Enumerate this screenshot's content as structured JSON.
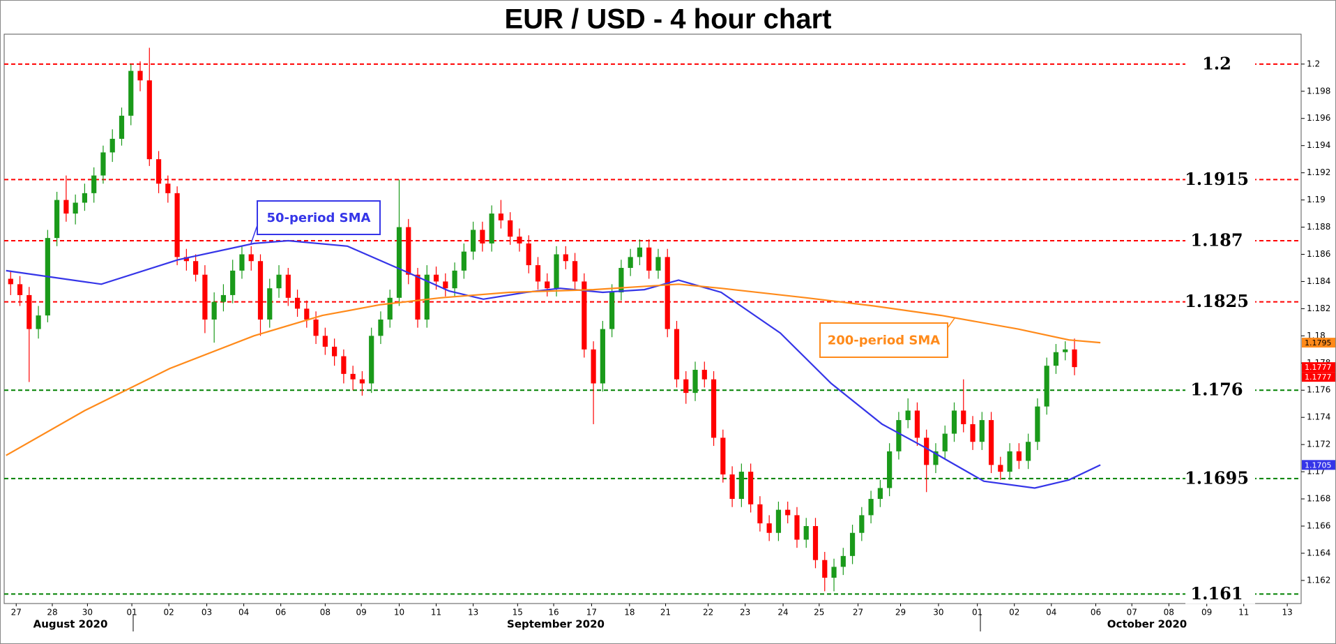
{
  "chart_data": {
    "type": "candlestick",
    "title": "EUR / USD - 4 hour chart",
    "xlim": [
      -0.7,
      139.5
    ],
    "ylim": [
      1.1603,
      1.2022
    ],
    "yticks": [
      1.162,
      1.164,
      1.166,
      1.168,
      1.17,
      1.172,
      1.174,
      1.176,
      1.178,
      1.18,
      1.182,
      1.184,
      1.186,
      1.188,
      1.19,
      1.192,
      1.194,
      1.196,
      1.198,
      1.2
    ],
    "xticks": [
      {
        "value": 0.6,
        "label": "27"
      },
      {
        "value": 4.5,
        "label": "28"
      },
      {
        "value": 8.3,
        "label": "30"
      },
      {
        "value": 13.1,
        "label": "01"
      },
      {
        "value": 17.1,
        "label": "02"
      },
      {
        "value": 21.2,
        "label": "03"
      },
      {
        "value": 25.2,
        "label": "04"
      },
      {
        "value": 29.2,
        "label": "06"
      },
      {
        "value": 34.0,
        "label": "08"
      },
      {
        "value": 37.9,
        "label": "09"
      },
      {
        "value": 42.0,
        "label": "10"
      },
      {
        "value": 46.0,
        "label": "11"
      },
      {
        "value": 50.0,
        "label": "13"
      },
      {
        "value": 54.8,
        "label": "15"
      },
      {
        "value": 58.7,
        "label": "16"
      },
      {
        "value": 62.8,
        "label": "17"
      },
      {
        "value": 66.9,
        "label": "18"
      },
      {
        "value": 70.8,
        "label": "21"
      },
      {
        "value": 75.4,
        "label": "22"
      },
      {
        "value": 79.4,
        "label": "23"
      },
      {
        "value": 83.5,
        "label": "24"
      },
      {
        "value": 87.4,
        "label": "25"
      },
      {
        "value": 91.6,
        "label": "27"
      },
      {
        "value": 96.2,
        "label": "29"
      },
      {
        "value": 100.3,
        "label": "30"
      },
      {
        "value": 104.5,
        "label": "01"
      },
      {
        "value": 108.5,
        "label": "02"
      },
      {
        "value": 112.5,
        "label": "04"
      },
      {
        "value": 117.3,
        "label": "06"
      },
      {
        "value": 121.2,
        "label": "07"
      },
      {
        "value": 125.2,
        "label": "08"
      },
      {
        "value": 129.3,
        "label": "09"
      },
      {
        "value": 133.3,
        "label": "11"
      },
      {
        "value": 138.0,
        "label": "13"
      }
    ],
    "month_labels": [
      "August 2020",
      "September 2020",
      "October 2020"
    ],
    "up_color": "#1a9a1a",
    "down_color": "#ff0000",
    "ohlc": [
      [
        1.1842,
        1.1848,
        1.183,
        1.1838
      ],
      [
        1.1838,
        1.1844,
        1.1822,
        1.183
      ],
      [
        1.183,
        1.1836,
        1.1766,
        1.1805
      ],
      [
        1.1805,
        1.1822,
        1.1798,
        1.1815
      ],
      [
        1.1815,
        1.1878,
        1.181,
        1.1872
      ],
      [
        1.1872,
        1.1906,
        1.1866,
        1.19
      ],
      [
        1.19,
        1.1918,
        1.1884,
        1.189
      ],
      [
        1.189,
        1.1904,
        1.1882,
        1.1898
      ],
      [
        1.1898,
        1.1912,
        1.1892,
        1.1905
      ],
      [
        1.1905,
        1.1924,
        1.1898,
        1.1918
      ],
      [
        1.1918,
        1.194,
        1.1912,
        1.1935
      ],
      [
        1.1935,
        1.1952,
        1.1928,
        1.1945
      ],
      [
        1.1945,
        1.1968,
        1.194,
        1.1962
      ],
      [
        1.1962,
        1.2,
        1.1955,
        1.1995
      ],
      [
        1.1995,
        1.2002,
        1.198,
        1.1988
      ],
      [
        1.1988,
        1.2012,
        1.1925,
        1.193
      ],
      [
        1.193,
        1.1936,
        1.1905,
        1.1912
      ],
      [
        1.1912,
        1.1918,
        1.1898,
        1.1905
      ],
      [
        1.1905,
        1.191,
        1.1852,
        1.1858
      ],
      [
        1.1858,
        1.1864,
        1.1848,
        1.1855
      ],
      [
        1.1855,
        1.186,
        1.184,
        1.1845
      ],
      [
        1.1845,
        1.1852,
        1.1802,
        1.1812
      ],
      [
        1.1812,
        1.1832,
        1.1795,
        1.1825
      ],
      [
        1.1825,
        1.1838,
        1.1818,
        1.183
      ],
      [
        1.183,
        1.1856,
        1.1824,
        1.1848
      ],
      [
        1.1848,
        1.1866,
        1.1842,
        1.186
      ],
      [
        1.186,
        1.1866,
        1.1848,
        1.1855
      ],
      [
        1.1855,
        1.186,
        1.18,
        1.1812
      ],
      [
        1.1812,
        1.1842,
        1.1806,
        1.1835
      ],
      [
        1.1835,
        1.1852,
        1.1828,
        1.1845
      ],
      [
        1.1845,
        1.185,
        1.1822,
        1.1828
      ],
      [
        1.1828,
        1.1834,
        1.1814,
        1.182
      ],
      [
        1.182,
        1.1826,
        1.1806,
        1.1812
      ],
      [
        1.1812,
        1.1818,
        1.1794,
        1.18
      ],
      [
        1.18,
        1.1806,
        1.1786,
        1.1792
      ],
      [
        1.1792,
        1.1798,
        1.1778,
        1.1785
      ],
      [
        1.1785,
        1.179,
        1.1765,
        1.1772
      ],
      [
        1.1772,
        1.1778,
        1.176,
        1.1768
      ],
      [
        1.1768,
        1.1774,
        1.1756,
        1.1765
      ],
      [
        1.1765,
        1.1806,
        1.1758,
        1.18
      ],
      [
        1.18,
        1.1818,
        1.1794,
        1.1812
      ],
      [
        1.1812,
        1.1834,
        1.1806,
        1.1828
      ],
      [
        1.1828,
        1.1915,
        1.1822,
        1.188
      ],
      [
        1.188,
        1.1886,
        1.1838,
        1.1845
      ],
      [
        1.1845,
        1.185,
        1.1806,
        1.1812
      ],
      [
        1.1812,
        1.1852,
        1.1806,
        1.1845
      ],
      [
        1.1845,
        1.1851,
        1.1834,
        1.184
      ],
      [
        1.184,
        1.1846,
        1.1829,
        1.1835
      ],
      [
        1.1835,
        1.1854,
        1.1829,
        1.1848
      ],
      [
        1.1848,
        1.1868,
        1.1842,
        1.1862
      ],
      [
        1.1862,
        1.1884,
        1.1856,
        1.1878
      ],
      [
        1.1878,
        1.1884,
        1.1862,
        1.1868
      ],
      [
        1.1868,
        1.1896,
        1.1862,
        1.189
      ],
      [
        1.189,
        1.19,
        1.1879,
        1.1885
      ],
      [
        1.1885,
        1.1891,
        1.1867,
        1.1873
      ],
      [
        1.1873,
        1.1879,
        1.1862,
        1.1868
      ],
      [
        1.1868,
        1.1874,
        1.1846,
        1.1852
      ],
      [
        1.1852,
        1.1858,
        1.1834,
        1.184
      ],
      [
        1.184,
        1.1846,
        1.1829,
        1.1835
      ],
      [
        1.1835,
        1.1866,
        1.1829,
        1.186
      ],
      [
        1.186,
        1.1866,
        1.1849,
        1.1855
      ],
      [
        1.1855,
        1.1861,
        1.1834,
        1.184
      ],
      [
        1.184,
        1.1846,
        1.1784,
        1.179
      ],
      [
        1.179,
        1.1796,
        1.1735,
        1.1765
      ],
      [
        1.1765,
        1.1811,
        1.1759,
        1.1805
      ],
      [
        1.1805,
        1.1838,
        1.1799,
        1.1832
      ],
      [
        1.1832,
        1.1856,
        1.1826,
        1.185
      ],
      [
        1.185,
        1.1864,
        1.1844,
        1.1858
      ],
      [
        1.1858,
        1.1871,
        1.1852,
        1.1865
      ],
      [
        1.1865,
        1.1871,
        1.1842,
        1.1848
      ],
      [
        1.1848,
        1.1864,
        1.1842,
        1.1858
      ],
      [
        1.1858,
        1.1864,
        1.1799,
        1.1805
      ],
      [
        1.1805,
        1.1811,
        1.1762,
        1.1768
      ],
      [
        1.1768,
        1.1774,
        1.175,
        1.1758
      ],
      [
        1.1758,
        1.1781,
        1.1752,
        1.1775
      ],
      [
        1.1775,
        1.1781,
        1.1762,
        1.1768
      ],
      [
        1.1768,
        1.1774,
        1.1719,
        1.1725
      ],
      [
        1.1725,
        1.1731,
        1.1692,
        1.1698
      ],
      [
        1.1698,
        1.1704,
        1.1674,
        1.168
      ],
      [
        1.168,
        1.1706,
        1.1674,
        1.17
      ],
      [
        1.17,
        1.1706,
        1.167,
        1.1676
      ],
      [
        1.1676,
        1.1682,
        1.1656,
        1.1662
      ],
      [
        1.1662,
        1.1668,
        1.1649,
        1.1655
      ],
      [
        1.1655,
        1.1678,
        1.1649,
        1.1672
      ],
      [
        1.1672,
        1.1678,
        1.1662,
        1.1668
      ],
      [
        1.1668,
        1.1674,
        1.1644,
        1.165
      ],
      [
        1.165,
        1.1666,
        1.1644,
        1.166
      ],
      [
        1.166,
        1.1666,
        1.1629,
        1.1635
      ],
      [
        1.1635,
        1.1641,
        1.1612,
        1.1622
      ],
      [
        1.1622,
        1.1636,
        1.1612,
        1.163
      ],
      [
        1.163,
        1.1644,
        1.1624,
        1.1638
      ],
      [
        1.1638,
        1.1661,
        1.1632,
        1.1655
      ],
      [
        1.1655,
        1.1674,
        1.1649,
        1.1668
      ],
      [
        1.1668,
        1.1686,
        1.1662,
        1.168
      ],
      [
        1.168,
        1.1694,
        1.1674,
        1.1688
      ],
      [
        1.1688,
        1.1721,
        1.1682,
        1.1715
      ],
      [
        1.1715,
        1.1744,
        1.1709,
        1.1738
      ],
      [
        1.1738,
        1.1754,
        1.1732,
        1.1745
      ],
      [
        1.1745,
        1.1751,
        1.1719,
        1.1725
      ],
      [
        1.1725,
        1.1731,
        1.1685,
        1.1705
      ],
      [
        1.1705,
        1.1721,
        1.1699,
        1.1715
      ],
      [
        1.1715,
        1.1734,
        1.1709,
        1.1728
      ],
      [
        1.1728,
        1.1751,
        1.1722,
        1.1745
      ],
      [
        1.1745,
        1.1768,
        1.1729,
        1.1735
      ],
      [
        1.1735,
        1.1741,
        1.1716,
        1.1722
      ],
      [
        1.1722,
        1.1744,
        1.1716,
        1.1738
      ],
      [
        1.1738,
        1.1744,
        1.1699,
        1.1705
      ],
      [
        1.1705,
        1.1711,
        1.1694,
        1.17
      ],
      [
        1.17,
        1.1721,
        1.1694,
        1.1715
      ],
      [
        1.1715,
        1.1721,
        1.1702,
        1.1708
      ],
      [
        1.1708,
        1.1728,
        1.1702,
        1.1722
      ],
      [
        1.1722,
        1.1754,
        1.1716,
        1.1748
      ],
      [
        1.1748,
        1.1784,
        1.1742,
        1.1778
      ],
      [
        1.1778,
        1.1794,
        1.1772,
        1.1788
      ],
      [
        1.1788,
        1.1796,
        1.1782,
        1.179
      ],
      [
        1.179,
        1.1798,
        1.1771,
        1.1777
      ]
    ],
    "sma": [
      {
        "name": "50-period SMA",
        "color": "#3535e8",
        "x": [
          -0.5,
          9.8,
          18.1,
          26.3,
          30,
          36.4,
          42.8,
          47.4,
          51.1,
          55.7,
          59.4,
          64,
          68.5,
          72.2,
          76.8,
          83.2,
          88.7,
          94.2,
          98.8,
          101.6,
          105.2,
          110.7,
          114.4,
          117.8
        ],
        "values": [
          1.1848,
          1.1838,
          1.1856,
          1.1868,
          1.187,
          1.1866,
          1.1847,
          1.1833,
          1.1827,
          1.1832,
          1.1835,
          1.1832,
          1.1834,
          1.1841,
          1.1832,
          1.1802,
          1.1765,
          1.1735,
          1.1718,
          1.1707,
          1.1693,
          1.1688,
          1.1694,
          1.1705
        ]
      },
      {
        "name": "200-period SMA",
        "color": "#ff8a1a",
        "x": [
          -0.5,
          8,
          17.2,
          26.3,
          33.7,
          40,
          46.5,
          53.9,
          63,
          72.2,
          76.8,
          86,
          93.3,
          100.6,
          108.9,
          114.4,
          117.8
        ],
        "values": [
          1.1712,
          1.1745,
          1.1776,
          1.18,
          1.1815,
          1.1823,
          1.1828,
          1.1832,
          1.1834,
          1.1838,
          1.1835,
          1.1828,
          1.1822,
          1.1815,
          1.1805,
          1.1797,
          1.1795
        ]
      }
    ],
    "levels": [
      {
        "value": 1.2,
        "color": "#ff0000"
      },
      {
        "value": 1.1915,
        "color": "#ff0000"
      },
      {
        "value": 1.187,
        "color": "#ff0000"
      },
      {
        "value": 1.1825,
        "color": "#ff0000"
      },
      {
        "value": 1.176,
        "color": "#008000"
      },
      {
        "value": 1.1695,
        "color": "#008000"
      },
      {
        "value": 1.161,
        "color": "#008000"
      }
    ],
    "price_tags": [
      {
        "value": 1.1795,
        "color": "#ff8a1a"
      },
      {
        "value": 1.1777,
        "color": "#ff0000"
      },
      {
        "value": 1.1777,
        "color": "#ff0000"
      },
      {
        "value": 1.1705,
        "color": "#3535e8"
      }
    ]
  }
}
